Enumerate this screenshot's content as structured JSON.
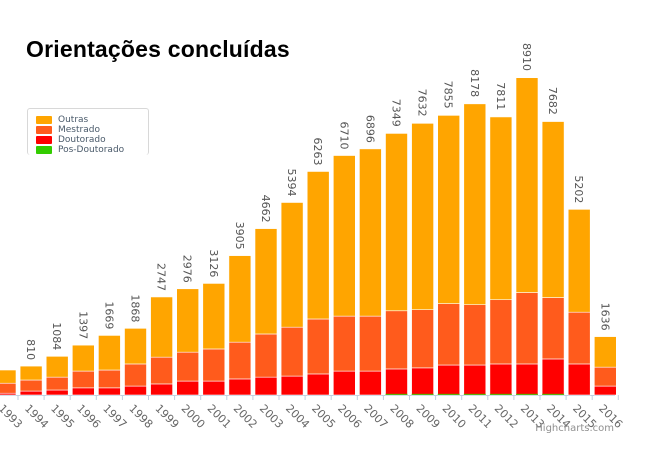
{
  "title": "Orientações concluídas",
  "credit": "Highcharts.com",
  "colors": {
    "Outras": "#ffa500",
    "Mestrado": "#ff5b1c",
    "Doutorado": "#ff0000",
    "Pos-Doutorado": "#33cc00"
  },
  "chart_data": {
    "type": "bar",
    "stacked": true,
    "title": "Orientações concluídas",
    "xlabel": "",
    "ylabel": "",
    "legend_position": "top-left",
    "grid": false,
    "ylim": [
      0,
      9000
    ],
    "categories": [
      "1993",
      "1994",
      "1995",
      "1996",
      "1997",
      "1998",
      "1999",
      "2000",
      "2001",
      "2002",
      "2003",
      "2004",
      "2005",
      "2006",
      "2007",
      "2008",
      "2009",
      "2010",
      "2011",
      "2012",
      "2013",
      "2014",
      "2015",
      "2016"
    ],
    "totals": [
      700,
      810,
      1084,
      1397,
      1669,
      1868,
      2747,
      2976,
      3126,
      3905,
      4662,
      5394,
      6263,
      6710,
      6896,
      7349,
      7632,
      7855,
      8178,
      7811,
      8910,
      7682,
      5202,
      1636
    ],
    "total_labels": [
      "",
      "810",
      "1084",
      "1397",
      "1669",
      "1868",
      "2747",
      "2976",
      "3126",
      "3905",
      "4662",
      "5394",
      "6263",
      "6710",
      "6896",
      "7349",
      "7632",
      "7855",
      "8178",
      "7811",
      "8910",
      "7682",
      "5202",
      "1636"
    ],
    "series": [
      {
        "name": "Outras",
        "values": [
          370,
          390,
          584,
          727,
          969,
          998,
          1687,
          1776,
          1836,
          2425,
          2952,
          3494,
          4133,
          4500,
          4686,
          4969,
          5222,
          5275,
          5628,
          5121,
          6020,
          4932,
          2882,
          856
        ]
      },
      {
        "name": "Mestrado",
        "values": [
          280,
          310,
          360,
          470,
          500,
          620,
          750,
          810,
          900,
          1030,
          1210,
          1370,
          1540,
          1540,
          1540,
          1630,
          1630,
          1720,
          1690,
          1800,
          2000,
          1720,
          1450,
          530
        ]
      },
      {
        "name": "Doutorado",
        "values": [
          50,
          110,
          140,
          200,
          200,
          250,
          310,
          390,
          390,
          450,
          500,
          530,
          590,
          670,
          670,
          730,
          760,
          840,
          840,
          870,
          870,
          1010,
          870,
          250
        ]
      },
      {
        "name": "Pos-Doutorado",
        "values": [
          0,
          0,
          0,
          0,
          0,
          0,
          0,
          0,
          0,
          0,
          0,
          0,
          0,
          0,
          0,
          20,
          20,
          20,
          20,
          20,
          20,
          20,
          0,
          0
        ]
      }
    ]
  }
}
